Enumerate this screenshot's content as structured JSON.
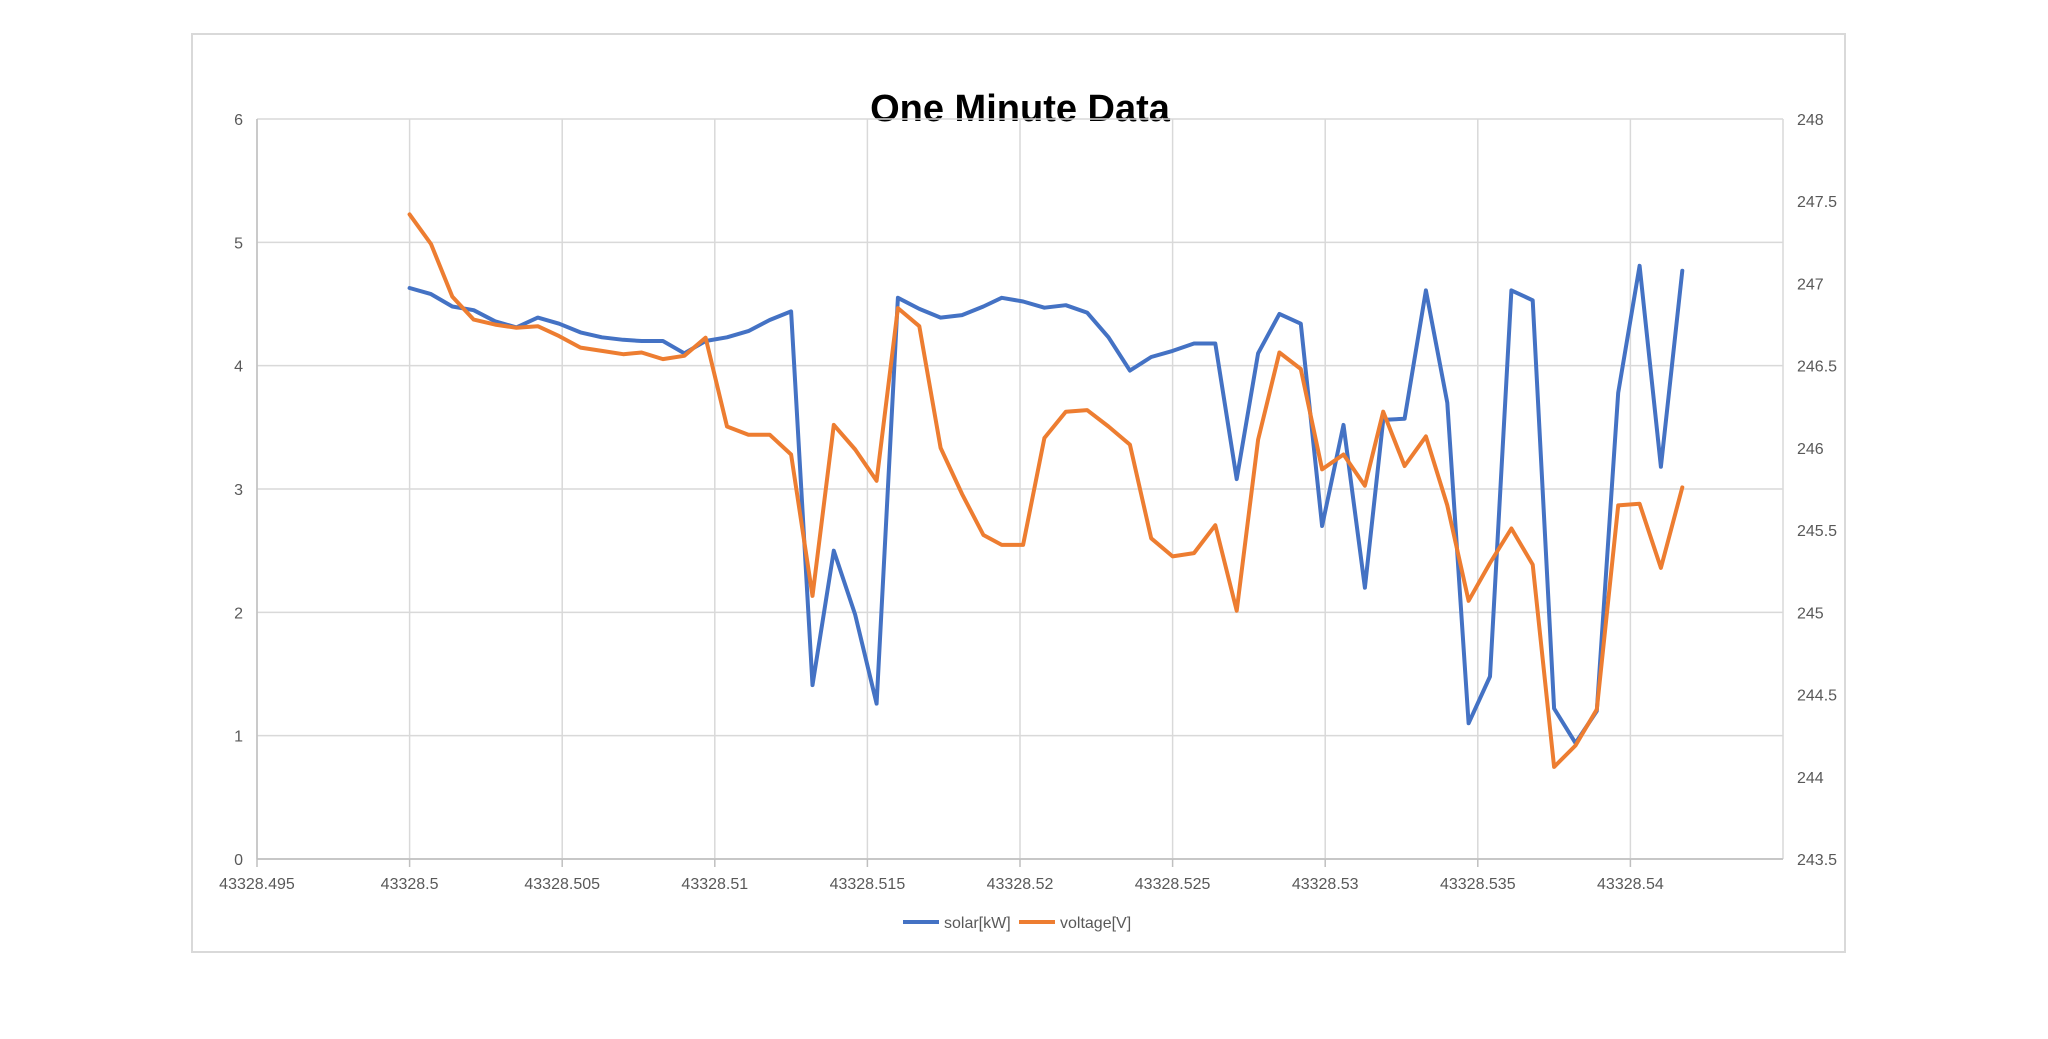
{
  "chart_data": {
    "type": "line",
    "title": "One Minute Data",
    "xlabel": "",
    "ylabel": "",
    "y2label": "",
    "xlim": [
      43328.495,
      43328.545
    ],
    "ylim": [
      0,
      6
    ],
    "y2lim": [
      243.5,
      248
    ],
    "x_ticks": [
      "43328.495",
      "43328.5",
      "43328.505",
      "43328.51",
      "43328.515",
      "43328.52",
      "43328.525",
      "43328.53",
      "43328.535",
      "43328.54"
    ],
    "y_ticks": [
      "0",
      "1",
      "2",
      "3",
      "4",
      "5",
      "6"
    ],
    "y2_ticks": [
      "243.5",
      "244",
      "244.5",
      "245",
      "245.5",
      "246",
      "246.5",
      "247",
      "247.5",
      "248"
    ],
    "grid": true,
    "legend_position": "bottom",
    "x": [
      43328.5,
      43328.5007,
      43328.5014,
      43328.5021,
      43328.5028,
      43328.5035,
      43328.5042,
      43328.5049,
      43328.5056,
      43328.5063,
      43328.507,
      43328.5076,
      43328.5083,
      43328.509,
      43328.5097,
      43328.5104,
      43328.5111,
      43328.5118,
      43328.5125,
      43328.5132,
      43328.5139,
      43328.5146,
      43328.5153,
      43328.516,
      43328.5167,
      43328.5174,
      43328.5181,
      43328.5188,
      43328.5194,
      43328.5201,
      43328.5208,
      43328.5215,
      43328.5222,
      43328.5229,
      43328.5236,
      43328.5243,
      43328.525,
      43328.5257,
      43328.5264,
      43328.5271,
      43328.5278,
      43328.5285,
      43328.5292,
      43328.5299,
      43328.5306,
      43328.5313,
      43328.5319,
      43328.5326,
      43328.5333,
      43328.534,
      43328.5347,
      43328.5354,
      43328.5361,
      43328.5368,
      43328.5375,
      43328.5382,
      43328.5389,
      43328.5396,
      43328.5403,
      43328.541,
      43328.5417
    ],
    "series": [
      {
        "name": "solar[kW]",
        "color": "#4472C4",
        "axis": "left",
        "values": [
          4.63,
          4.58,
          4.48,
          4.45,
          4.36,
          4.31,
          4.39,
          4.34,
          4.27,
          4.23,
          4.21,
          4.2,
          4.2,
          4.1,
          4.2,
          4.23,
          4.28,
          4.37,
          4.44,
          1.41,
          2.5,
          1.98,
          1.26,
          4.55,
          4.46,
          4.39,
          4.41,
          4.48,
          4.55,
          4.52,
          4.47,
          4.49,
          4.43,
          4.23,
          3.96,
          4.07,
          4.12,
          4.18,
          4.18,
          3.08,
          4.1,
          4.42,
          4.34,
          2.7,
          3.52,
          2.2,
          3.56,
          3.57,
          4.61,
          3.7,
          1.1,
          1.48,
          4.61,
          4.53,
          1.22,
          0.94,
          1.2,
          3.78,
          4.81,
          3.18,
          4.77
        ]
      },
      {
        "name": "voltage[V]",
        "color": "#ED7D31",
        "axis": "right",
        "values": [
          247.42,
          247.24,
          246.92,
          246.78,
          246.75,
          246.73,
          246.74,
          246.68,
          246.61,
          246.59,
          246.57,
          246.58,
          246.54,
          246.56,
          246.67,
          246.13,
          246.08,
          246.08,
          245.96,
          245.1,
          246.14,
          245.99,
          245.8,
          246.85,
          246.74,
          246.0,
          245.72,
          245.47,
          245.41,
          245.41,
          246.06,
          246.22,
          246.23,
          246.13,
          246.02,
          245.45,
          245.34,
          245.36,
          245.53,
          245.01,
          246.05,
          246.58,
          246.48,
          245.87,
          245.96,
          245.77,
          246.22,
          245.89,
          246.07,
          245.65,
          245.07,
          245.3,
          245.51,
          245.29,
          244.06,
          244.19,
          244.41,
          245.65,
          245.66,
          245.27,
          245.76
        ]
      }
    ]
  }
}
